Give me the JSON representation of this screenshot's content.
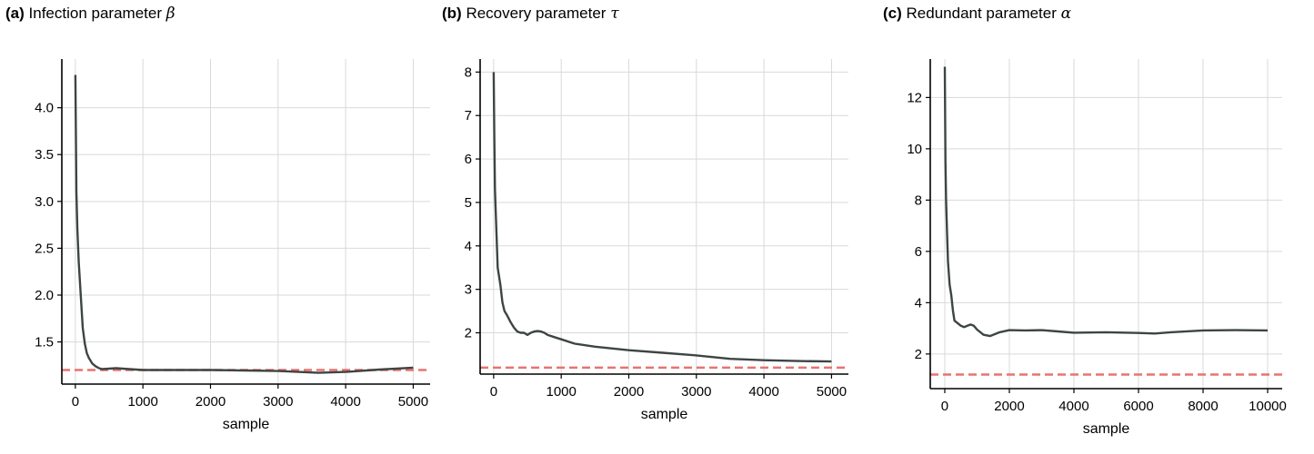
{
  "chart_data": [
    {
      "type": "line",
      "panel_label": "(a)",
      "title": "Infection parameter",
      "symbol": "β",
      "xlabel": "sample",
      "ylabel": "",
      "xlim": [
        -200,
        5250
      ],
      "ylim": [
        1.05,
        4.52
      ],
      "xticks": [
        0,
        1000,
        2000,
        3000,
        4000,
        5000
      ],
      "yticks": [
        1.5,
        2.0,
        2.5,
        3.0,
        3.5,
        4.0
      ],
      "xtick_labels": [
        "0",
        "1000",
        "2000",
        "3000",
        "4000",
        "5000"
      ],
      "ytick_labels": [
        "1.5",
        "2.0",
        "2.5",
        "3.0",
        "3.5",
        "4.0"
      ],
      "grid": true,
      "reference_line": {
        "value": 1.2,
        "color": "#e8736f",
        "style": "dashed"
      },
      "series": [
        {
          "color": "#3d4543",
          "x": [
            0,
            15,
            30,
            50,
            80,
            110,
            140,
            170,
            200,
            250,
            300,
            350,
            400,
            500,
            600,
            700,
            800,
            1000,
            1500,
            2000,
            2500,
            3000,
            3300,
            3600,
            4000,
            4500,
            5000
          ],
          "y": [
            4.35,
            3.1,
            2.7,
            2.35,
            2.0,
            1.65,
            1.48,
            1.38,
            1.33,
            1.27,
            1.24,
            1.22,
            1.21,
            1.215,
            1.22,
            1.215,
            1.21,
            1.2,
            1.2,
            1.2,
            1.195,
            1.19,
            1.18,
            1.17,
            1.18,
            1.205,
            1.225
          ]
        }
      ]
    },
    {
      "type": "line",
      "panel_label": "(b)",
      "title": "Recovery parameter",
      "symbol": "τ",
      "xlabel": "sample",
      "ylabel": "",
      "xlim": [
        -200,
        5250
      ],
      "ylim": [
        1.05,
        8.3
      ],
      "xticks": [
        0,
        1000,
        2000,
        3000,
        4000,
        5000
      ],
      "yticks": [
        2,
        3,
        4,
        5,
        6,
        7,
        8
      ],
      "xtick_labels": [
        "0",
        "1000",
        "2000",
        "3000",
        "4000",
        "5000"
      ],
      "ytick_labels": [
        "2",
        "3",
        "4",
        "5",
        "6",
        "7",
        "8"
      ],
      "grid": true,
      "reference_line": {
        "value": 1.2,
        "color": "#e8736f",
        "style": "dashed"
      },
      "series": [
        {
          "color": "#3d4543",
          "x": [
            0,
            10,
            20,
            40,
            60,
            80,
            100,
            130,
            160,
            200,
            250,
            300,
            350,
            400,
            450,
            500,
            550,
            600,
            650,
            700,
            750,
            800,
            900,
            1000,
            1200,
            1500,
            2000,
            2500,
            3000,
            3500,
            4000,
            4500,
            5000
          ],
          "y": [
            8.0,
            6.5,
            5.3,
            4.4,
            3.5,
            3.3,
            3.1,
            2.7,
            2.5,
            2.4,
            2.25,
            2.12,
            2.03,
            2.0,
            2.0,
            1.95,
            2.0,
            2.03,
            2.04,
            2.03,
            2.0,
            1.95,
            1.9,
            1.85,
            1.75,
            1.68,
            1.6,
            1.54,
            1.48,
            1.4,
            1.37,
            1.35,
            1.34
          ]
        }
      ]
    },
    {
      "type": "line",
      "panel_label": "(c)",
      "title": "Redundant parameter",
      "symbol": "α",
      "xlabel": "sample",
      "ylabel": "",
      "xlim": [
        -450,
        10450
      ],
      "ylim": [
        0.65,
        13.5
      ],
      "xticks": [
        0,
        2000,
        4000,
        6000,
        8000,
        10000
      ],
      "yticks": [
        2,
        4,
        6,
        8,
        10,
        12
      ],
      "xtick_labels": [
        "0",
        "2000",
        "4000",
        "6000",
        "8000",
        "10000"
      ],
      "ytick_labels": [
        "2",
        "4",
        "6",
        "8",
        "10",
        "12"
      ],
      "grid": true,
      "reference_line": {
        "value": 1.2,
        "color": "#e8736f",
        "style": "dashed"
      },
      "series": [
        {
          "color": "#3d4543",
          "x": [
            0,
            20,
            40,
            70,
            100,
            150,
            200,
            250,
            300,
            350,
            400,
            500,
            600,
            700,
            800,
            900,
            1000,
            1200,
            1400,
            1700,
            2000,
            2500,
            3000,
            3500,
            4000,
            5000,
            6000,
            6500,
            7000,
            8000,
            9000,
            10000
          ],
          "y": [
            13.2,
            9.5,
            8.0,
            6.7,
            5.6,
            4.7,
            4.3,
            3.7,
            3.3,
            3.25,
            3.2,
            3.1,
            3.05,
            3.1,
            3.15,
            3.1,
            2.95,
            2.75,
            2.7,
            2.85,
            2.93,
            2.92,
            2.93,
            2.88,
            2.83,
            2.85,
            2.82,
            2.8,
            2.85,
            2.92,
            2.93,
            2.92
          ]
        }
      ]
    }
  ]
}
